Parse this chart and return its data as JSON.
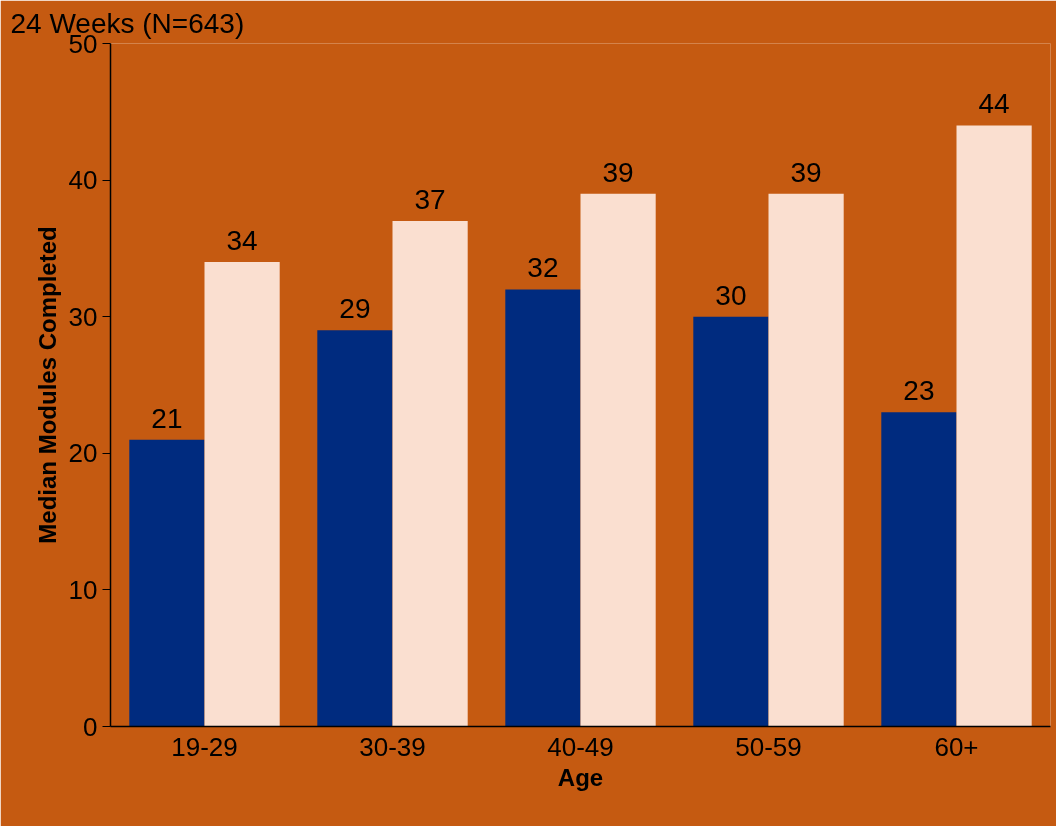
{
  "chart_data": {
    "type": "bar",
    "title": "24 Weeks (N=643)",
    "xlabel": "Age",
    "ylabel": "Median Modules Completed",
    "categories": [
      "19-29",
      "30-39",
      "40-49",
      "50-59",
      "60+"
    ],
    "series": [
      {
        "color": "#002b7f",
        "values": [
          21,
          29,
          32,
          30,
          23
        ]
      },
      {
        "color": "#fadfd0",
        "values": [
          34,
          37,
          39,
          39,
          44
        ]
      }
    ],
    "ylim": [
      0,
      50
    ],
    "yticks": [
      0,
      10,
      20,
      30,
      40,
      50
    ],
    "grid": false,
    "data_labels": true
  }
}
